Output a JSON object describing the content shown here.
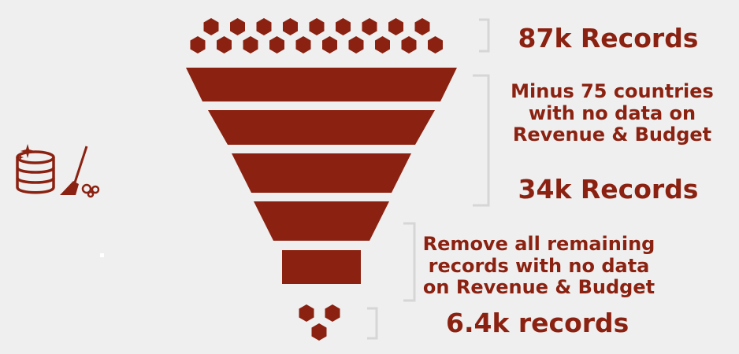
{
  "colors": {
    "primary": "#8b2211",
    "background": "#efefef",
    "bracket": "#d6d6d6"
  },
  "icons": [
    "database-cleanup-icon",
    "broom-icon"
  ],
  "funnel": {
    "stages": 5,
    "input_hexagons": 19,
    "output_hexagons": 3
  },
  "labels": {
    "records_start": "87k Records",
    "step1_line1": "Minus 75 countries",
    "step1_line2": "with no data on",
    "step1_line3": "Revenue & Budget",
    "records_mid": "34k Records",
    "step2_line1": "Remove all remaining",
    "step2_line2": "records with no data",
    "step2_line3": "on Revenue & Budget",
    "records_end": "6.4k records"
  }
}
